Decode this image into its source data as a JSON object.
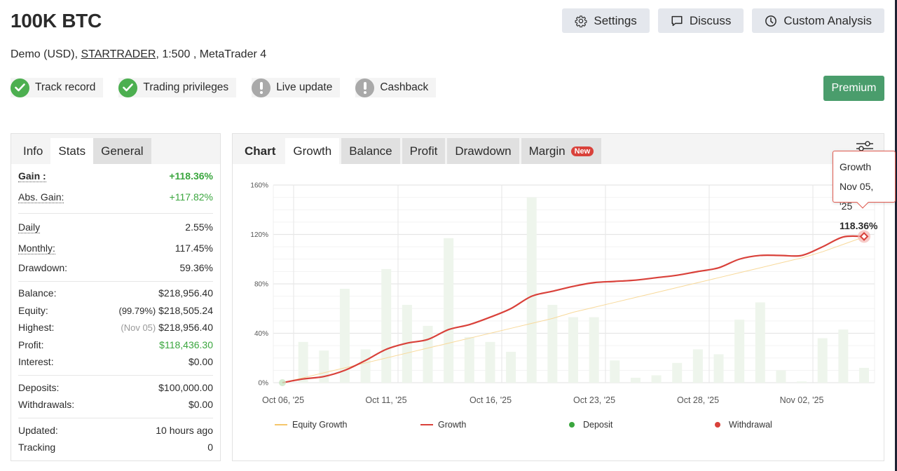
{
  "header": {
    "title": "100K BTC",
    "account_type": "Demo (USD), ",
    "broker": "STARTRADER",
    "leverage_platform": ", 1:500 , MetaTrader 4"
  },
  "badges": [
    {
      "label": "Track record",
      "status": "ok",
      "icon": "check-circle-icon"
    },
    {
      "label": "Trading privileges",
      "status": "ok",
      "icon": "check-circle-icon"
    },
    {
      "label": "Live update",
      "status": "warning",
      "icon": "exclamation-circle-icon"
    },
    {
      "label": "Cashback",
      "status": "warning",
      "icon": "exclamation-circle-icon"
    }
  ],
  "toolbar": {
    "settings_label": "Settings",
    "discuss_label": "Discuss",
    "custom_analysis_label": "Custom Analysis",
    "premium_label": "Premium"
  },
  "left_panel": {
    "tabs": [
      {
        "label": "Info",
        "state": "normal"
      },
      {
        "label": "Stats",
        "state": "active"
      },
      {
        "label": "General",
        "state": "highlight"
      }
    ],
    "stats": {
      "gain": {
        "label": "Gain :",
        "value": "+118.36%"
      },
      "abs_gain": {
        "label": "Abs. Gain:",
        "value": "+117.82%"
      },
      "daily": {
        "label": "Daily",
        "value": "2.55%"
      },
      "monthly": {
        "label": "Monthly:",
        "value": "117.45%"
      },
      "drawdown": {
        "label": "Drawdown:",
        "value": "59.36%"
      },
      "balance": {
        "label": "Balance:",
        "value": "$218,956.40"
      },
      "equity": {
        "label": "Equity:",
        "note": "(99.79%)",
        "value": "$218,505.24"
      },
      "highest": {
        "label": "Highest:",
        "note": "(Nov 05)",
        "value": "$218,956.40"
      },
      "profit": {
        "label": "Profit:",
        "value": "$118,436.30"
      },
      "interest": {
        "label": "Interest:",
        "value": "$0.00"
      },
      "deposits": {
        "label": "Deposits:",
        "value": "$100,000.00"
      },
      "withdrawals": {
        "label": "Withdrawals:",
        "value": "$0.00"
      },
      "updated": {
        "label": "Updated:",
        "value": "10 hours ago"
      },
      "tracking": {
        "label": "Tracking",
        "value": "0"
      }
    }
  },
  "chart_panel": {
    "tabs": [
      {
        "label": "Chart",
        "state": "title"
      },
      {
        "label": "Growth",
        "state": "active"
      },
      {
        "label": "Balance",
        "state": "highlight"
      },
      {
        "label": "Profit",
        "state": "highlight"
      },
      {
        "label": "Drawdown",
        "state": "highlight"
      },
      {
        "label": "Margin",
        "state": "highlight",
        "badge": "New"
      }
    ],
    "tooltip": {
      "series": "Growth",
      "date": "Nov 05, '25",
      "value": "118.36%"
    }
  },
  "colors": {
    "growth_line": "#d9413a",
    "equity_growth_line": "#f5c66b",
    "deposit": "#3aa63e",
    "withdrawal": "#d9413a",
    "bars": "#eef5ec",
    "premium": "#4a9d6c",
    "positive": "#3aa63e"
  },
  "chart_data": {
    "type": "line",
    "title": "Growth",
    "xlabel": "",
    "ylabel": "",
    "ylim": [
      0,
      160
    ],
    "yticks": [
      "0%",
      "40%",
      "80%",
      "120%",
      "160%"
    ],
    "xtick_labels": [
      "Oct 06, '25",
      "Oct 11, '25",
      "Oct 16, '25",
      "Oct 23, '25",
      "Oct 28, '25",
      "Nov 02, '25"
    ],
    "grid": true,
    "legend": [
      "Equity Growth",
      "Growth",
      "Deposit",
      "Withdrawal"
    ],
    "legend_position": "bottom",
    "series": [
      {
        "name": "Growth",
        "type": "line",
        "values": [
          0,
          3,
          5,
          10,
          18,
          27,
          32,
          35,
          43,
          47,
          53,
          60,
          70,
          74,
          78,
          81,
          82,
          83,
          85,
          87,
          90,
          93,
          100,
          103,
          103,
          103,
          110,
          118,
          118.36
        ]
      },
      {
        "name": "Equity Growth",
        "type": "line",
        "values": [
          0,
          4,
          8,
          12,
          16,
          20,
          24,
          28,
          32,
          36,
          40,
          44,
          48,
          52,
          57,
          61,
          65,
          69,
          73,
          77,
          81,
          85,
          89,
          93,
          97,
          101,
          106,
          112,
          118
        ]
      },
      {
        "name": "Daily bars",
        "type": "bar",
        "values": [
          0,
          33,
          26,
          76,
          27,
          92,
          63,
          46,
          117,
          37,
          33,
          25,
          150,
          63,
          53,
          53,
          18,
          4,
          6,
          16,
          27,
          23,
          51,
          65,
          10,
          1,
          36,
          43,
          12
        ]
      }
    ],
    "highlight_point": {
      "date": "Nov 05, '25",
      "value": 118.36
    }
  }
}
